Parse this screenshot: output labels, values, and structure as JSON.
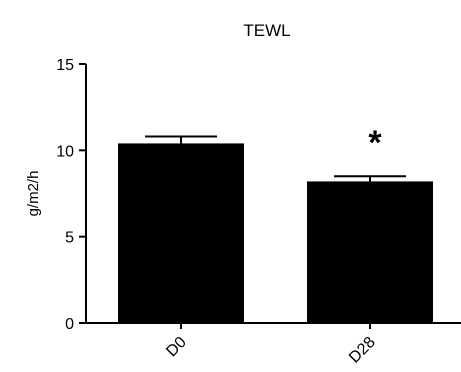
{
  "chart_data": {
    "type": "bar",
    "title": "TEWL",
    "xlabel": "",
    "ylabel": "g/m2/h",
    "categories": [
      "D0",
      "D28"
    ],
    "values": [
      10.4,
      8.2
    ],
    "error": [
      0.4,
      0.3
    ],
    "annotations": [
      {
        "category": "D28",
        "text": "*"
      }
    ],
    "ylim": [
      0,
      15
    ],
    "yticks": [
      0,
      5,
      10,
      15
    ],
    "ytick_labels": [
      "0",
      "5",
      "10",
      "15"
    ],
    "grid": false,
    "legend": "none",
    "colors": {
      "bar": "#000000",
      "axis": "#000000",
      "background": "#ffffff"
    }
  }
}
